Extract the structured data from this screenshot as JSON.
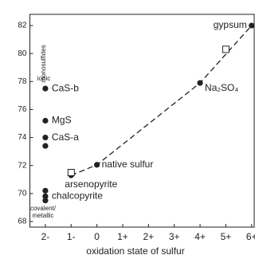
{
  "chart_data": {
    "type": "scatter",
    "x_label": "oxidation state of sulfur",
    "xlim": [
      -2.6,
      6.1
    ],
    "xticks": [
      {
        "value": -2,
        "label": "2-"
      },
      {
        "value": -1,
        "label": "1-"
      },
      0,
      {
        "value": 1,
        "label": "1+"
      },
      {
        "value": 2,
        "label": "2+"
      },
      {
        "value": 3,
        "label": "3+"
      },
      {
        "value": 4,
        "label": "4+"
      },
      {
        "value": 5,
        "label": "5+"
      },
      {
        "value": 6,
        "label": "6+"
      }
    ],
    "ylim": [
      67.6,
      82.8
    ],
    "yticks": [
      68,
      70,
      72,
      74,
      76,
      78,
      80,
      82
    ],
    "annotations": [
      "monosulfides",
      "ionic",
      "covalent/",
      "metallic"
    ],
    "series": [
      {
        "color": "#222222",
        "marker": "circle",
        "line": "dashed",
        "x": [
          -1,
          0,
          4,
          6
        ],
        "values": [
          71.3,
          72.05,
          77.9,
          82.0
        ],
        "point_labels": [
          "arsenopyrite",
          "native sulfur",
          "Na₂SO₄",
          "gypsum"
        ]
      },
      {
        "color": "#222222",
        "marker": "circle",
        "x": [
          -2,
          -2,
          -2,
          -2,
          -2,
          -2,
          -2
        ],
        "values": [
          77.5,
          75.2,
          74.0,
          73.4,
          70.2,
          69.8,
          69.5
        ],
        "point_labels": [
          "CaS-b",
          "MgS",
          "CaS-a",
          null,
          null,
          "chalcopyrite",
          null
        ]
      },
      {
        "color": "#222222",
        "marker": "open-square",
        "x": [
          -1,
          5
        ],
        "values": [
          71.5,
          80.3
        ]
      }
    ]
  }
}
